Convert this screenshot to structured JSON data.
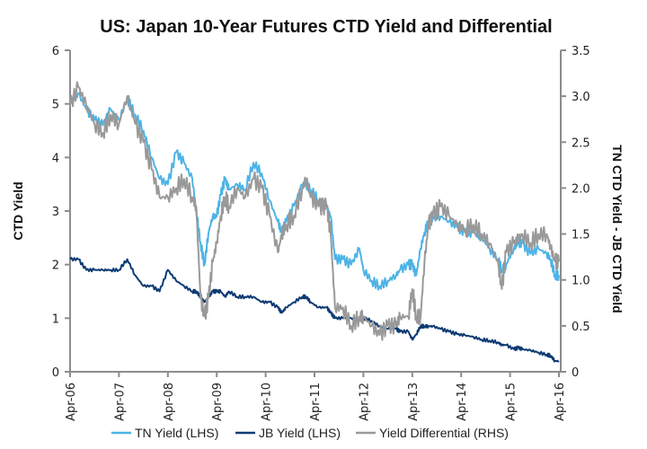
{
  "chart_data": {
    "type": "line",
    "title": "US: Japan 10-Year Futures CTD Yield and Differential",
    "ylabel_left": "CTD Yield",
    "ylabel_right": "TN CTD Yield - JB CTD Yield",
    "xlabel": "",
    "ylim_left": [
      0,
      6
    ],
    "ylim_right": [
      0,
      3.5
    ],
    "yticks_left": [
      "0",
      "1",
      "2",
      "3",
      "4",
      "5",
      "6"
    ],
    "yticks_right": [
      "0",
      "0.5",
      "1.0",
      "1.5",
      "2.0",
      "2.5",
      "3.0",
      "3.5"
    ],
    "xlim": [
      2006.25,
      2016.25
    ],
    "xticks": [
      "Apr-06",
      "Apr-07",
      "Apr-08",
      "Apr-09",
      "Apr-10",
      "Apr-11",
      "Apr-12",
      "Apr-13",
      "Apr-14",
      "Apr-15",
      "Apr-16"
    ],
    "grid": false,
    "legend_position": "bottom",
    "legend": [
      "TN Yield (LHS)",
      "JB Yield (LHS)",
      "Yield Differential (RHS)"
    ],
    "x": [
      2006.25,
      2006.42,
      2006.58,
      2006.75,
      2006.92,
      2007.08,
      2007.25,
      2007.42,
      2007.58,
      2007.75,
      2007.92,
      2008.08,
      2008.25,
      2008.42,
      2008.58,
      2008.75,
      2008.83,
      2008.92,
      2009.0,
      2009.08,
      2009.17,
      2009.25,
      2009.33,
      2009.42,
      2009.5,
      2009.67,
      2009.83,
      2010.0,
      2010.17,
      2010.33,
      2010.5,
      2010.58,
      2010.67,
      2010.83,
      2011.0,
      2011.08,
      2011.17,
      2011.33,
      2011.5,
      2011.58,
      2011.67,
      2011.83,
      2012.0,
      2012.17,
      2012.25,
      2012.42,
      2012.58,
      2012.75,
      2012.92,
      2013.0,
      2013.17,
      2013.25,
      2013.33,
      2013.42,
      2013.5,
      2013.58,
      2013.67,
      2013.83,
      2014.0,
      2014.17,
      2014.33,
      2014.5,
      2014.67,
      2014.83,
      2015.0,
      2015.08,
      2015.17,
      2015.33,
      2015.42,
      2015.5,
      2015.67,
      2015.83,
      2016.0,
      2016.08,
      2016.17,
      2016.25
    ],
    "series": [
      {
        "name": "TN Yield (LHS)",
        "axis": "left",
        "color": "#4db3e6",
        "values": [
          5.0,
          5.2,
          4.9,
          4.7,
          4.6,
          4.9,
          4.7,
          5.1,
          4.8,
          4.5,
          4.0,
          3.6,
          3.5,
          4.1,
          3.9,
          3.6,
          3.0,
          2.4,
          2.0,
          2.6,
          2.9,
          2.9,
          3.3,
          3.6,
          3.4,
          3.5,
          3.4,
          3.9,
          3.7,
          3.2,
          2.8,
          2.6,
          2.8,
          3.1,
          3.5,
          3.5,
          3.4,
          3.2,
          3.1,
          2.9,
          2.1,
          2.1,
          2.0,
          2.3,
          1.9,
          1.7,
          1.6,
          1.7,
          1.8,
          1.9,
          2.0,
          2.0,
          1.8,
          2.3,
          2.6,
          2.8,
          2.9,
          2.9,
          2.8,
          2.7,
          2.6,
          2.6,
          2.5,
          2.3,
          2.1,
          1.9,
          2.0,
          2.3,
          2.4,
          2.4,
          2.2,
          2.3,
          2.2,
          2.1,
          1.8,
          1.8
        ]
      },
      {
        "name": "JB Yield (LHS)",
        "axis": "left",
        "color": "#0d3b73",
        "values": [
          2.1,
          2.1,
          1.9,
          1.9,
          1.9,
          1.9,
          1.9,
          2.1,
          1.8,
          1.6,
          1.6,
          1.5,
          1.9,
          1.7,
          1.6,
          1.5,
          1.5,
          1.4,
          1.3,
          1.4,
          1.5,
          1.5,
          1.5,
          1.4,
          1.5,
          1.4,
          1.4,
          1.4,
          1.3,
          1.3,
          1.2,
          1.1,
          1.2,
          1.3,
          1.4,
          1.4,
          1.3,
          1.2,
          1.2,
          1.1,
          1.0,
          1.0,
          1.0,
          1.0,
          1.0,
          0.95,
          0.85,
          0.8,
          0.8,
          0.75,
          0.75,
          0.6,
          0.7,
          0.85,
          0.85,
          0.85,
          0.85,
          0.8,
          0.75,
          0.7,
          0.68,
          0.65,
          0.6,
          0.58,
          0.55,
          0.5,
          0.5,
          0.42,
          0.45,
          0.42,
          0.4,
          0.36,
          0.32,
          0.3,
          0.2,
          0.2
        ]
      },
      {
        "name": "Yield Differential (RHS)",
        "axis": "right",
        "color": "#999999",
        "values": [
          2.9,
          3.1,
          2.9,
          2.7,
          2.6,
          2.8,
          2.7,
          3.0,
          2.7,
          2.5,
          2.2,
          1.9,
          1.9,
          2.0,
          2.1,
          1.9,
          1.8,
          0.8,
          0.6,
          0.8,
          1.2,
          1.4,
          1.7,
          1.9,
          1.8,
          2.0,
          1.9,
          2.1,
          2.0,
          1.7,
          1.3,
          1.5,
          1.6,
          1.7,
          2.0,
          2.1,
          1.9,
          1.8,
          1.8,
          1.5,
          0.7,
          0.7,
          0.5,
          0.6,
          0.6,
          0.5,
          0.4,
          0.5,
          0.5,
          0.6,
          0.6,
          0.9,
          0.6,
          0.6,
          1.2,
          1.6,
          1.7,
          1.8,
          1.7,
          1.6,
          1.55,
          1.6,
          1.5,
          1.4,
          1.2,
          0.9,
          1.3,
          1.4,
          1.45,
          1.5,
          1.4,
          1.5,
          1.5,
          1.35,
          1.2,
          1.2
        ]
      }
    ]
  }
}
